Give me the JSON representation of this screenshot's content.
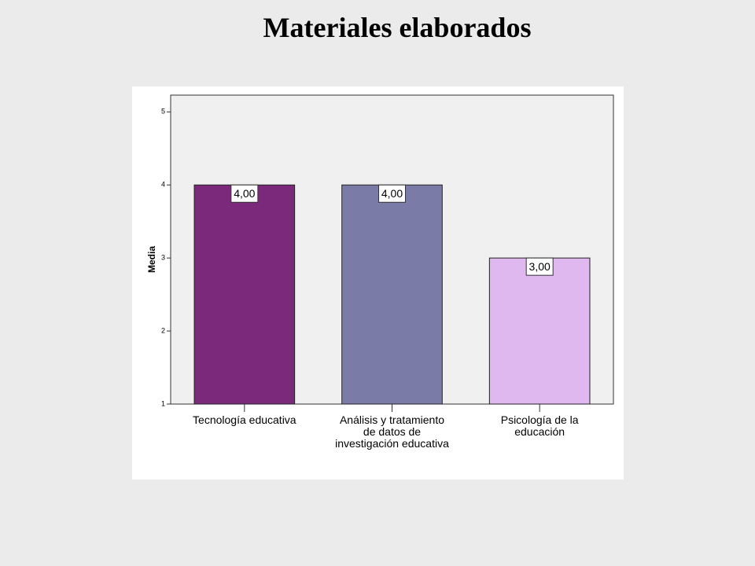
{
  "chart_data": {
    "type": "bar",
    "title": "Materiales elaborados",
    "y_label": "Media",
    "categories": [
      "Tecnología educativa",
      "Análisis y tratamiento\nde datos de\ninvestigación educativa",
      "Psicología de la\neducación"
    ],
    "values": [
      4,
      4,
      3
    ],
    "value_labels": [
      "4,00",
      "4,00",
      "3,00"
    ],
    "colors": [
      "#7b2a7b",
      "#7b7ba8",
      "#dfb8f0"
    ],
    "ylim": [
      1,
      5.23
    ],
    "yticks": [
      1,
      2,
      3,
      4,
      5
    ],
    "grid": false
  }
}
